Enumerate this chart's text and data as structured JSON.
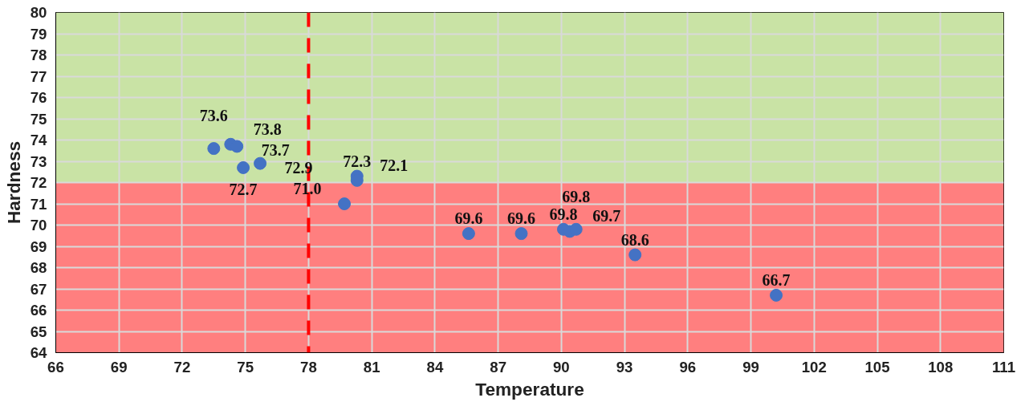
{
  "chart_data": {
    "type": "scatter",
    "xlabel": "Temperature",
    "ylabel": "Hardness",
    "x": [
      73.5,
      74.3,
      74.6,
      74.9,
      75.7,
      79.7,
      80.3,
      80.3,
      85.6,
      88.1,
      90.1,
      90.4,
      90.7,
      93.5,
      100.2
    ],
    "series": [
      {
        "color": "#4472c4",
        "values": [
          73.6,
          73.8,
          73.7,
          72.7,
          72.9,
          71.0,
          72.3,
          72.1,
          69.6,
          69.6,
          69.8,
          69.7,
          69.8,
          68.6,
          66.7
        ]
      }
    ],
    "xlim": [
      66,
      111
    ],
    "xticks": [
      66,
      69,
      72,
      75,
      78,
      81,
      84,
      87,
      90,
      93,
      96,
      99,
      102,
      105,
      108,
      111
    ],
    "ylim": [
      64,
      80
    ],
    "yticks": [
      64,
      65,
      66,
      67,
      68,
      69,
      70,
      71,
      72,
      73,
      74,
      75,
      76,
      77,
      78,
      79,
      80
    ],
    "bands": [
      {
        "axis": "y",
        "from": 72,
        "to": 80,
        "label": null,
        "color": "#c9e3a5"
      },
      {
        "axis": "y",
        "from": 64,
        "to": 72,
        "label": null,
        "color": "#ff7f7f"
      }
    ],
    "ref_lines": [
      {
        "axis": "x",
        "value": 78,
        "label": null,
        "color": "#ff0000",
        "line_style": "dashed"
      }
    ],
    "value_labels": [
      "73.6",
      "73.8",
      "73.7",
      "72.7",
      "72.9",
      "71.0",
      "72.3",
      "72.1",
      "69.6",
      "69.6",
      "69.8",
      "69.7",
      "69.8",
      "68.6",
      "66.7"
    ],
    "grid": true,
    "marker": "circle"
  }
}
